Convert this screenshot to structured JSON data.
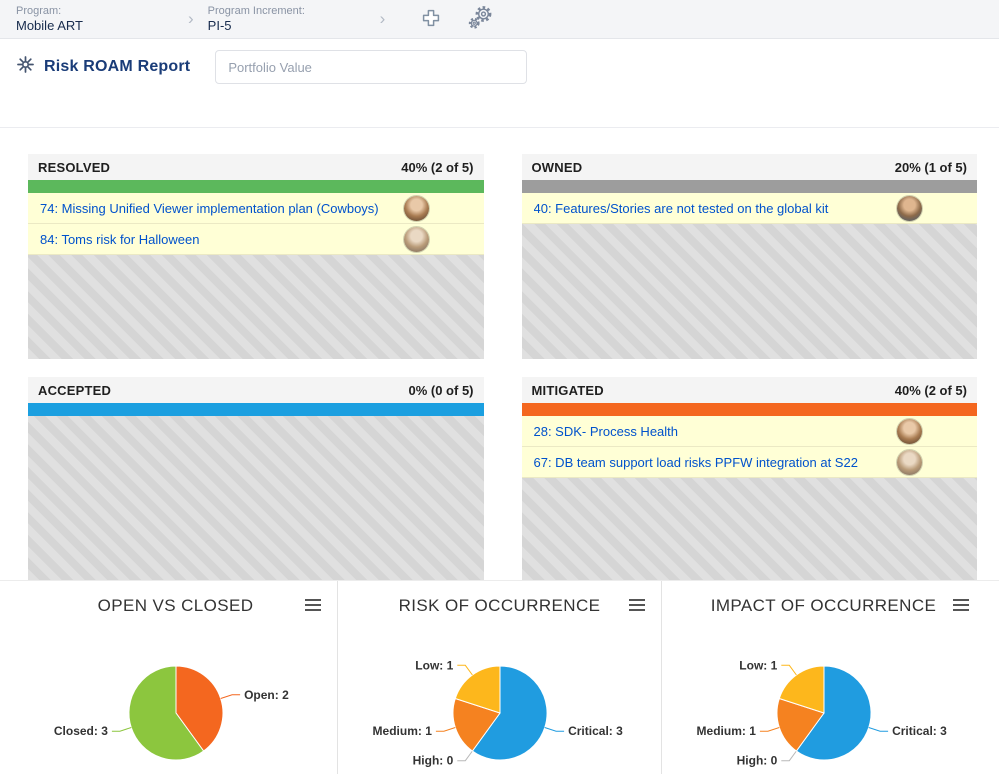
{
  "topbar": {
    "program_label": "Program:",
    "program_value": "Mobile ART",
    "increment_label": "Program Increment:",
    "increment_value": "PI-5",
    "add_icon": "plus-icon",
    "settings_icon": "gears-icon"
  },
  "header": {
    "report_icon": "flower-icon",
    "title": "Risk ROAM Report",
    "portfolio_placeholder": "Portfolio Value"
  },
  "board": {
    "quadrants": [
      {
        "title": "RESOLVED",
        "stat": "40% (2 of 5)",
        "bar_color": "#5cb85c",
        "items": [
          {
            "text": "74: Missing Unified Viewer implementation plan (Cowboys)",
            "avatar": true
          },
          {
            "text": "84: Toms risk for Halloween",
            "avatar": true
          }
        ]
      },
      {
        "title": "OWNED",
        "stat": "20% (1 of 5)",
        "bar_color": "#9d9d9d",
        "items": [
          {
            "text": "40: Features/Stories are not tested on the global kit",
            "avatar": true
          }
        ]
      },
      {
        "title": "ACCEPTED",
        "stat": "0% (0 of 5)",
        "bar_color": "#1b9fe0",
        "items": []
      },
      {
        "title": "MITIGATED",
        "stat": "40% (2 of 5)",
        "bar_color": "#f4671f",
        "items": [
          {
            "text": "28: SDK- Process Health",
            "avatar": true
          },
          {
            "text": "67: DB team support load risks PPFW integration at S22",
            "avatar": true
          }
        ]
      }
    ]
  },
  "chart_data": [
    {
      "type": "pie",
      "title": "OPEN VS CLOSED",
      "start_angle": 0,
      "direction": "clockwise",
      "label_format": "name: value",
      "slices": [
        {
          "name": "Open",
          "value": 2,
          "color": "#f4671f"
        },
        {
          "name": "Closed",
          "value": 3,
          "color": "#8cc63e"
        }
      ]
    },
    {
      "type": "pie",
      "title": "RISK OF OCCURRENCE",
      "start_angle": 0,
      "direction": "clockwise",
      "label_format": "name: value",
      "slices": [
        {
          "name": "Critical",
          "value": 3,
          "color": "#209ce0"
        },
        {
          "name": "High",
          "value": 0,
          "color": "#cccccc"
        },
        {
          "name": "Medium",
          "value": 1,
          "color": "#f58220"
        },
        {
          "name": "Low",
          "value": 1,
          "color": "#fdb71c"
        }
      ]
    },
    {
      "type": "pie",
      "title": "IMPACT OF OCCURRENCE",
      "start_angle": 0,
      "direction": "clockwise",
      "label_format": "name: value",
      "slices": [
        {
          "name": "Critical",
          "value": 3,
          "color": "#209ce0"
        },
        {
          "name": "High",
          "value": 0,
          "color": "#cccccc"
        },
        {
          "name": "Medium",
          "value": 1,
          "color": "#f58220"
        },
        {
          "name": "Low",
          "value": 1,
          "color": "#fdb71c"
        }
      ]
    }
  ]
}
